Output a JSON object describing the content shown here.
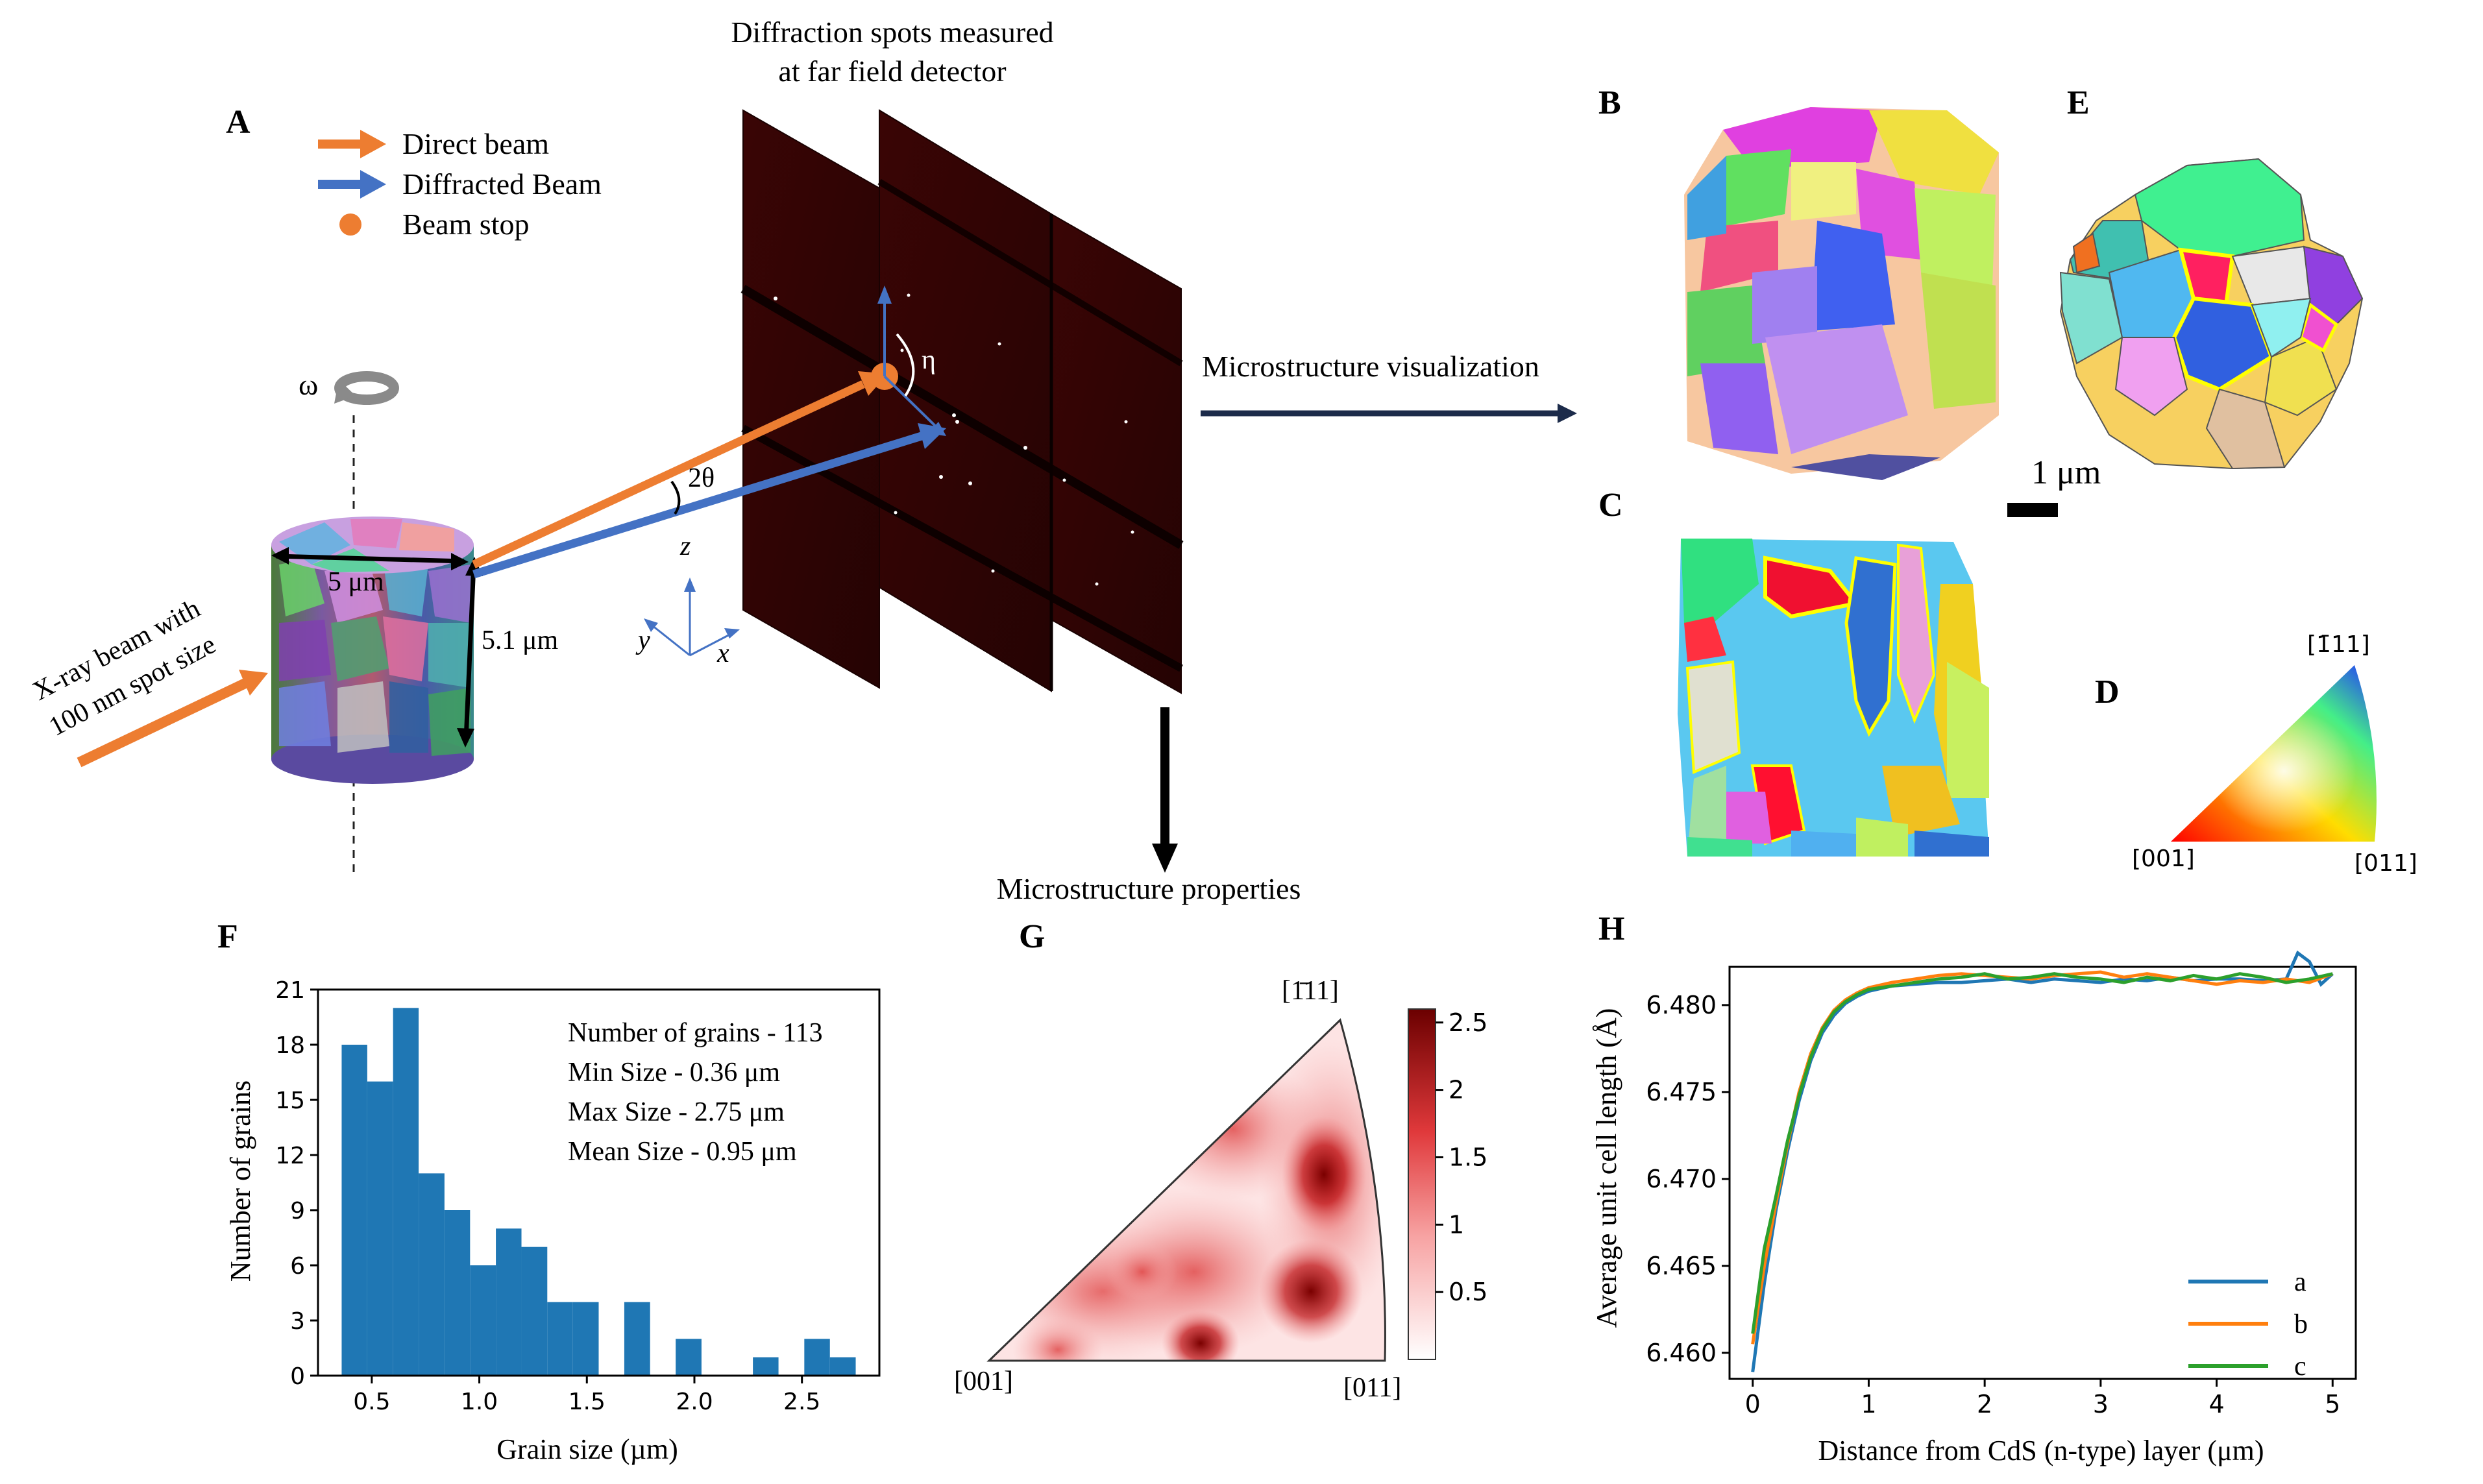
{
  "panel_labels": {
    "A": "A",
    "B": "B",
    "C": "C",
    "D": "D",
    "E": "E",
    "F": "F",
    "G": "G",
    "H": "H"
  },
  "panelA": {
    "legend": [
      {
        "label": "Direct beam",
        "color": "#ED7D31"
      },
      {
        "label": "Diffracted Beam",
        "color": "#4472C4"
      },
      {
        "label": "Beam stop",
        "color": "#ED7D31"
      }
    ],
    "detector_title_1": "Diffraction spots measured",
    "detector_title_2": "at far field detector",
    "omega": "ω",
    "eta": "η",
    "two_theta": "2θ",
    "xray_1": "X-ray beam with",
    "xray_2": "100 nm spot size",
    "width": "5 μm",
    "height": "5.1 μm",
    "axis_z": "z",
    "axis_y": "y",
    "axis_x": "x",
    "microstructure_visualization": "Microstructure visualization",
    "microstructure_properties": "Microstructure properties"
  },
  "scale_bar": "1 μm",
  "panelD": {
    "top": "[1̄11]",
    "left": "[001]",
    "right": "[011]"
  },
  "panelG": {
    "top": "[1̄11]",
    "left": "[001]",
    "right": "[011]",
    "colorbar_ticks": [
      "0.5",
      "1",
      "1.5",
      "2",
      "2.5"
    ],
    "colorbar_max": 2.6
  },
  "colors": {
    "orange": "#ED7D31",
    "blue": "#4472C4",
    "hist": "#1F77B4",
    "line_a": "#1F77B4",
    "line_b": "#FF7F0E",
    "line_c": "#2CA02C"
  },
  "chart_data": [
    {
      "type": "bar",
      "panel": "F",
      "xlabel": "Grain size (µm)",
      "ylabel": "Number of grains",
      "bin_edges": [
        0.36,
        0.479,
        0.599,
        0.718,
        0.838,
        0.957,
        1.077,
        1.196,
        1.316,
        1.435,
        1.555,
        1.674,
        1.794,
        1.913,
        2.033,
        2.152,
        2.272,
        2.391,
        2.511,
        2.63,
        2.75
      ],
      "values": [
        18,
        16,
        20,
        11,
        9,
        6,
        8,
        7,
        4,
        4,
        0,
        4,
        0,
        2,
        0,
        0,
        1,
        0,
        2,
        1
      ],
      "xticks": [
        "0.5",
        "1.0",
        "1.5",
        "2.0",
        "2.5"
      ],
      "yticks": [
        "0",
        "3",
        "6",
        "9",
        "12",
        "15",
        "18",
        "21"
      ],
      "xlim": [
        0.25,
        2.86
      ],
      "ylim": [
        0,
        21
      ],
      "annotations": [
        "Number of grains - 113",
        "Min Size - 0.36 μm",
        "Max Size - 2.75 μm",
        "Mean Size - 0.95 μm"
      ]
    },
    {
      "type": "line",
      "panel": "H",
      "xlabel": "Distance from CdS (n-type) layer (μm)",
      "ylabel": "Average unit cell length (Å)",
      "xlim": [
        -0.2,
        5.2
      ],
      "ylim": [
        6.4585,
        6.4822
      ],
      "xticks": [
        "0",
        "1",
        "2",
        "3",
        "4",
        "5"
      ],
      "yticks": [
        "6.460",
        "6.465",
        "6.470",
        "6.475",
        "6.480"
      ],
      "legend_position": "lower-right",
      "series": [
        {
          "name": "a",
          "x": [
            0,
            0.1,
            0.2,
            0.3,
            0.4,
            0.5,
            0.6,
            0.7,
            0.8,
            0.9,
            1.0,
            1.2,
            1.4,
            1.6,
            1.8,
            2.0,
            2.2,
            2.4,
            2.6,
            2.8,
            3.0,
            3.2,
            3.4,
            3.6,
            3.8,
            4.0,
            4.2,
            4.4,
            4.6,
            4.7,
            4.8,
            4.9,
            5.0
          ],
          "y": [
            6.4589,
            6.464,
            6.4682,
            6.4716,
            6.4745,
            6.4768,
            6.4784,
            6.4794,
            6.4801,
            6.4805,
            6.4808,
            6.4811,
            6.4812,
            6.4813,
            6.4813,
            6.4814,
            6.4815,
            6.4813,
            6.4815,
            6.4814,
            6.4813,
            6.4815,
            6.4814,
            6.4816,
            6.4814,
            6.4815,
            6.4815,
            6.4814,
            6.4815,
            6.483,
            6.4825,
            6.4812,
            6.4818
          ]
        },
        {
          "name": "b",
          "x": [
            0,
            0.1,
            0.2,
            0.3,
            0.4,
            0.5,
            0.6,
            0.7,
            0.8,
            0.9,
            1.0,
            1.2,
            1.4,
            1.6,
            1.8,
            2.0,
            2.2,
            2.4,
            2.6,
            2.8,
            3.0,
            3.2,
            3.4,
            3.6,
            3.8,
            4.0,
            4.2,
            4.4,
            4.6,
            4.8,
            5.0
          ],
          "y": [
            6.4605,
            6.465,
            6.4686,
            6.472,
            6.475,
            6.4772,
            6.4787,
            6.4797,
            6.4803,
            6.4807,
            6.481,
            6.4813,
            6.4815,
            6.4817,
            6.4818,
            6.4817,
            6.4816,
            6.4815,
            6.4817,
            6.4818,
            6.4819,
            6.4816,
            6.4818,
            6.4816,
            6.4814,
            6.4812,
            6.4814,
            6.4813,
            6.4815,
            6.4813,
            6.4818
          ]
        },
        {
          "name": "c",
          "x": [
            0,
            0.1,
            0.2,
            0.3,
            0.4,
            0.5,
            0.6,
            0.7,
            0.8,
            0.9,
            1.0,
            1.2,
            1.4,
            1.6,
            1.8,
            2.0,
            2.2,
            2.4,
            2.6,
            2.8,
            3.0,
            3.2,
            3.4,
            3.6,
            3.8,
            4.0,
            4.2,
            4.4,
            4.6,
            4.8,
            5.0
          ],
          "y": [
            6.4611,
            6.466,
            6.469,
            6.4722,
            6.4748,
            6.477,
            6.4786,
            6.4796,
            6.4802,
            6.4806,
            6.4809,
            6.4811,
            6.4813,
            6.4815,
            6.4816,
            6.4818,
            6.4815,
            6.4816,
            6.4818,
            6.4816,
            6.4815,
            6.4813,
            6.4816,
            6.4814,
            6.4817,
            6.4815,
            6.4818,
            6.4816,
            6.4813,
            6.4815,
            6.4818
          ]
        }
      ]
    }
  ]
}
